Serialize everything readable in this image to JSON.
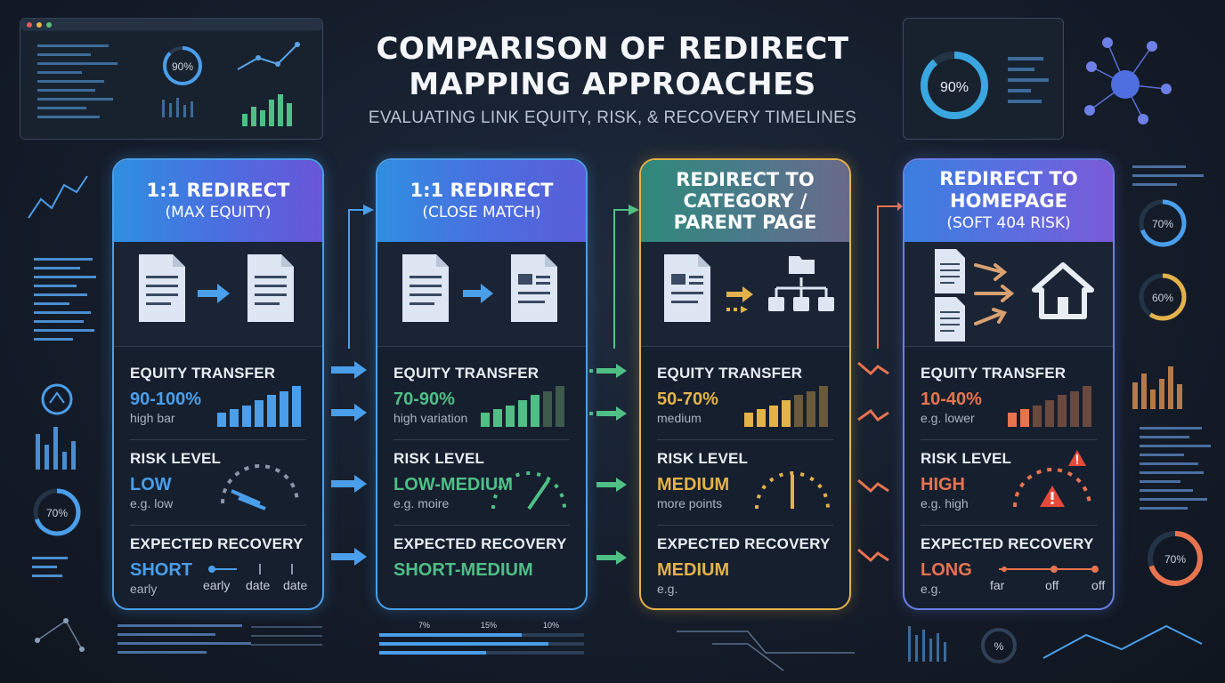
{
  "title_line1": "COMPARISON OF REDIRECT",
  "title_line2": "MAPPING APPROACHES",
  "subtitle": "EVALUATING LINK EQUITY, RISK, & RECOVERY TIMELINES",
  "labels": {
    "equity": "EQUITY TRANSFER",
    "risk": "RISK LEVEL",
    "recovery": "EXPECTED RECOVERY"
  },
  "cards": [
    {
      "head": "1:1 REDIRECT",
      "sub": "(MAX EQUITY)",
      "equity_value": "90-100%",
      "equity_note": "high bar",
      "risk_value": "LOW",
      "risk_note": "e.g. low",
      "recovery_value": "SHORT",
      "recovery_note": "early",
      "timeline": [
        "early",
        "date",
        "date"
      ],
      "accent": "#4a9eea"
    },
    {
      "head": "1:1 REDIRECT",
      "sub": "(CLOSE MATCH)",
      "equity_value": "70-90%",
      "equity_note": "high variation",
      "risk_value": "LOW-MEDIUM",
      "risk_note": "e.g. moire",
      "recovery_value": "SHORT-MEDIUM",
      "recovery_note": "",
      "timeline": [],
      "accent": "#4fbf86"
    },
    {
      "head": "REDIRECT TO CATEGORY / PARENT PAGE",
      "sub": "",
      "equity_value": "50-70%",
      "equity_note": "medium",
      "risk_value": "MEDIUM",
      "risk_note": "more points",
      "recovery_value": "MEDIUM",
      "recovery_note": "e.g.",
      "timeline": [],
      "accent": "#e3b24a"
    },
    {
      "head": "REDIRECT TO HOMEPAGE",
      "sub": "(SOFT 404 RISK)",
      "equity_value": "10-40%",
      "equity_note": "e.g. lower",
      "risk_value": "HIGH",
      "risk_note": "e.g. high",
      "recovery_value": "LONG",
      "recovery_note": "e.g.",
      "timeline": [
        "far",
        "off",
        "off"
      ],
      "accent": "#e8734f"
    }
  ],
  "decor": {
    "pct_90": "90%",
    "pct_70": "70%",
    "pct_60": "60%",
    "pct": "%",
    "small_pcts": [
      "7%",
      "15%",
      "10%"
    ]
  }
}
